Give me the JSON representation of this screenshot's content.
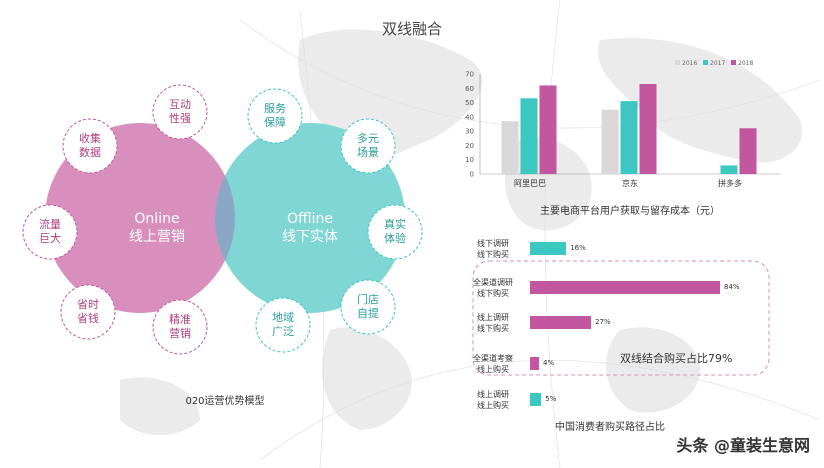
{
  "page": {
    "title": "双线融合"
  },
  "venn": {
    "left": {
      "en": "Online",
      "zh": "线上营销"
    },
    "right": {
      "en": "Offline",
      "zh": "线下实体"
    },
    "left_petals": [
      {
        "l1": "互动",
        "l2": "性强"
      },
      {
        "l1": "收集",
        "l2": "数据"
      },
      {
        "l1": "流量",
        "l2": "巨大"
      },
      {
        "l1": "省时",
        "l2": "省钱"
      },
      {
        "l1": "精准",
        "l2": "营销"
      }
    ],
    "right_petals": [
      {
        "l1": "服务",
        "l2": "保障"
      },
      {
        "l1": "多元",
        "l2": "场景"
      },
      {
        "l1": "真实",
        "l2": "体验"
      },
      {
        "l1": "门店",
        "l2": "自提"
      },
      {
        "l1": "地域",
        "l2": "广泛"
      }
    ],
    "caption": "020运营优势模型",
    "colors": {
      "left": "#d88fbd",
      "right": "#7fd6d5",
      "overlap": "#8aa8c4"
    }
  },
  "chart_data": [
    {
      "type": "bar",
      "title": "主要电商平台用户获取与留存成本（元）",
      "categories": [
        "阿里巴巴",
        "京东",
        "拼多多"
      ],
      "series": [
        {
          "name": "2016",
          "values": [
            37,
            45,
            0
          ],
          "color": "#d9d9d9"
        },
        {
          "name": "2017",
          "values": [
            53,
            51,
            6
          ],
          "color": "#3cc7c0"
        },
        {
          "name": "2018",
          "values": [
            62,
            63,
            32
          ],
          "color": "#c2569f"
        }
      ],
      "ylim": [
        0,
        70
      ],
      "yticks": [
        0,
        10,
        20,
        30,
        40,
        50,
        60,
        70
      ],
      "legend_position": "top-right"
    },
    {
      "type": "bar",
      "orientation": "horizontal",
      "title": "中国消费者购买路径占比",
      "categories": [
        {
          "l1": "线下调研",
          "l2": "线下购买"
        },
        {
          "l1": "全渠道调研",
          "l2": "线下购买"
        },
        {
          "l1": "线上调研",
          "l2": "线下购买"
        },
        {
          "l1": "全渠道考察",
          "l2": "线上购买"
        },
        {
          "l1": "线上调研",
          "l2": "线上购买"
        }
      ],
      "values": [
        16,
        84,
        27,
        4,
        5
      ],
      "value_labels": [
        "16%",
        "84%",
        "27%",
        "4%",
        "5%"
      ],
      "colors": [
        "#3cc7c0",
        "#c2569f",
        "#c2569f",
        "#c2569f",
        "#3cc7c0"
      ],
      "xlim": [
        0,
        84
      ],
      "annotation": "双线结合购买占比79%"
    }
  ],
  "watermark": {
    "text": "头条 @童装生意网"
  }
}
